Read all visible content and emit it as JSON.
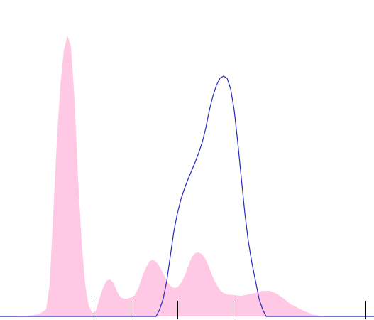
{
  "chart_data": {
    "type": "area",
    "xlim": [
      0,
      527
    ],
    "ylim": [
      0,
      100
    ],
    "xticks": [
      132,
      184,
      250,
      328,
      515
    ],
    "series": [
      {
        "type": "area",
        "color": "#ffc8e4",
        "x": [
          0,
          40,
          55,
          65,
          70,
          75,
          80,
          85,
          90,
          95,
          100,
          105,
          110,
          115,
          120,
          125,
          130,
          135,
          140,
          145,
          150,
          155,
          160,
          165,
          170,
          175,
          180,
          185,
          190,
          195,
          200,
          205,
          210,
          215,
          220,
          225,
          230,
          235,
          240,
          245,
          250,
          255,
          260,
          265,
          270,
          275,
          280,
          285,
          290,
          295,
          300,
          305,
          310,
          315,
          320,
          330,
          340,
          350,
          360,
          370,
          380,
          390,
          400,
          410,
          420,
          430,
          440,
          450,
          460,
          527
        ],
        "values": [
          0,
          0.25,
          0.75,
          2.5,
          11.25,
          36.25,
          61.25,
          81.25,
          93.75,
          98.75,
          95,
          76.25,
          48.75,
          26.25,
          11.25,
          3.75,
          1.25,
          2,
          6.25,
          10,
          12.5,
          13,
          11.75,
          8.75,
          6.75,
          6.25,
          6.25,
          6.75,
          7.5,
          10,
          13.75,
          16.75,
          19.25,
          20,
          19.25,
          17.5,
          15,
          12.5,
          10.75,
          10,
          10.25,
          11.75,
          14.25,
          17.5,
          20.75,
          22.25,
          22.5,
          21.75,
          20,
          17,
          13.75,
          11.25,
          9.25,
          8.25,
          7.75,
          7.5,
          7.25,
          7.75,
          8.25,
          9,
          9,
          8,
          6.25,
          4.25,
          3,
          1.75,
          0.75,
          0.25,
          0,
          0
        ]
      },
      {
        "type": "line",
        "color": "#2a2ab8",
        "x": [
          0,
          220,
          225,
          230,
          235,
          240,
          245,
          250,
          255,
          260,
          265,
          270,
          275,
          280,
          285,
          290,
          295,
          300,
          305,
          310,
          315,
          320,
          325,
          330,
          335,
          340,
          345,
          350,
          355,
          360,
          365,
          370,
          375,
          527
        ],
        "values": [
          0,
          0,
          2.5,
          6.25,
          12.5,
          21.25,
          30,
          36.25,
          41.25,
          45,
          48.25,
          51.25,
          54.25,
          57.5,
          61.25,
          66.25,
          72.5,
          77.5,
          81.25,
          83.75,
          84.5,
          83.75,
          80,
          72.5,
          61.25,
          48.75,
          36.25,
          26.25,
          18.75,
          12.5,
          6.25,
          2.5,
          0,
          0
        ]
      }
    ]
  }
}
